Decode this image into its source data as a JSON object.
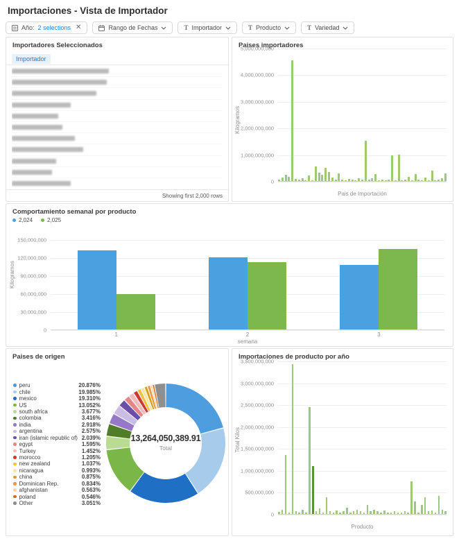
{
  "header": {
    "title": "Importaciones - Vista de Importador"
  },
  "filters": [
    {
      "icon": "listbox-filter-icon",
      "label": "Año:",
      "value": "2 selections",
      "action": "remove"
    },
    {
      "icon": "calendar-icon",
      "label": "Rango de Fechas",
      "action": "expand"
    },
    {
      "icon": "text-filter-icon",
      "label": "Importador",
      "action": "expand"
    },
    {
      "icon": "text-filter-icon",
      "label": "Producto",
      "action": "expand"
    },
    {
      "icon": "text-filter-icon",
      "label": "Variedad",
      "action": "expand"
    }
  ],
  "importers_panel": {
    "title": "Importadores Seleccionados",
    "column_header": "Importador",
    "rows_redacted": true,
    "redacted_row_widths_pct": [
      46,
      45,
      40,
      28,
      22,
      24,
      30,
      34,
      21,
      19,
      28
    ],
    "footer": "Showing first 2,000 rows"
  },
  "chart_data": [
    {
      "id": "paises-importadores",
      "type": "bar",
      "title": "Paises importadores",
      "xlabel": "Pais de Importación",
      "ylabel": "Kilogramos",
      "ylim": [
        0,
        5000000000
      ],
      "yticks": [
        "5,000,000,000",
        "4,000,000,000",
        "3,000,000,000",
        "2,000,000,000",
        "1,000,000,000",
        "0"
      ],
      "bar_color": "#9cc878",
      "grid": true,
      "values": [
        60000000,
        130000000,
        230000000,
        160000000,
        4550000000,
        90000000,
        40000000,
        110000000,
        30000000,
        210000000,
        30000000,
        540000000,
        310000000,
        240000000,
        500000000,
        350000000,
        130000000,
        40000000,
        300000000,
        60000000,
        30000000,
        90000000,
        50000000,
        30000000,
        100000000,
        60000000,
        1520000000,
        40000000,
        100000000,
        250000000,
        30000000,
        60000000,
        30000000,
        40000000,
        970000000,
        30000000,
        1000000000,
        30000000,
        60000000,
        150000000,
        30000000,
        250000000,
        60000000,
        30000000,
        120000000,
        30000000,
        400000000,
        30000000,
        60000000,
        100000000,
        300000000
      ]
    },
    {
      "id": "comportamiento-semanal",
      "type": "bar",
      "title": "Comportamiento semanal por producto",
      "xlabel": "semana",
      "ylabel": "Kilogramos",
      "categories": [
        "1",
        "2",
        "3"
      ],
      "series": [
        {
          "name": "2,024",
          "color": "#4ba0e0",
          "values": [
            133000000,
            121000000,
            108000000
          ]
        },
        {
          "name": "2,025",
          "color": "#7cb84e",
          "values": [
            59000000,
            113000000,
            135000000
          ]
        }
      ],
      "ylim": [
        0,
        150000000
      ],
      "yticks": [
        "150,000,000",
        "120,000,000",
        "90,000,000",
        "60,000,000",
        "30,000,000",
        "0"
      ],
      "grid": true,
      "legend_position": "top-left"
    },
    {
      "id": "paises-origen",
      "type": "pie",
      "title": "Paises de origen",
      "center_value": "13,264,050,389.91",
      "center_label": "Total",
      "slices": [
        {
          "name": "peru",
          "pct_label": "20.876%",
          "pct": 20.876,
          "color": "#4e9dde"
        },
        {
          "name": "chile",
          "pct_label": "19.985%",
          "pct": 19.985,
          "color": "#a7cbea"
        },
        {
          "name": "mexico",
          "pct_label": "19.310%",
          "pct": 19.31,
          "color": "#1f6fc5"
        },
        {
          "name": "US",
          "pct_label": "13.052%",
          "pct": 13.052,
          "color": "#7ab648"
        },
        {
          "name": "south africa",
          "pct_label": "3.677%",
          "pct": 3.677,
          "color": "#b9db92"
        },
        {
          "name": "colombia",
          "pct_label": "3.416%",
          "pct": 3.416,
          "color": "#507d28"
        },
        {
          "name": "india",
          "pct_label": "2.918%",
          "pct": 2.918,
          "color": "#9678c8"
        },
        {
          "name": "argentina",
          "pct_label": "2.575%",
          "pct": 2.575,
          "color": "#cabce4"
        },
        {
          "name": "iran (islamic republic of)",
          "pct_label": "2.039%",
          "pct": 2.039,
          "color": "#6a4ea8"
        },
        {
          "name": "egypt",
          "pct_label": "1.595%",
          "pct": 1.595,
          "color": "#e58787"
        },
        {
          "name": "Turkey",
          "pct_label": "1.452%",
          "pct": 1.452,
          "color": "#f2bcbc"
        },
        {
          "name": "morocco",
          "pct_label": "1.205%",
          "pct": 1.205,
          "color": "#cc3b33"
        },
        {
          "name": "new zealand",
          "pct_label": "1.037%",
          "pct": 1.037,
          "color": "#efc23f"
        },
        {
          "name": "nicaragua",
          "pct_label": "0.993%",
          "pct": 0.993,
          "color": "#f7e5ac"
        },
        {
          "name": "china",
          "pct_label": "0.875%",
          "pct": 0.875,
          "color": "#d9a11c"
        },
        {
          "name": "Dominican Rep.",
          "pct_label": "0.834%",
          "pct": 0.834,
          "color": "#f0963f"
        },
        {
          "name": "afghanistan",
          "pct_label": "0.563%",
          "pct": 0.563,
          "color": "#f8d4ae"
        },
        {
          "name": "poland",
          "pct_label": "0.546%",
          "pct": 0.546,
          "color": "#d06f1a"
        },
        {
          "name": "Other",
          "pct_label": "3.051%",
          "pct": 3.051,
          "color": "#8f8f8f"
        }
      ]
    },
    {
      "id": "producto-por-anio",
      "type": "bar",
      "title": "Importaciones de producto por año",
      "xlabel": "Producto",
      "ylabel": "Total Kilos",
      "ylim": [
        0,
        3500000000
      ],
      "yticks": [
        "3,500,000,000",
        "3,000,000,000",
        "2,500,000,000",
        "2,000,000,000",
        "1,500,000,000",
        "1,000,000,000",
        "500,000,000",
        "0"
      ],
      "bar_color": "#9cc878",
      "dark_color": "#5e8f3b",
      "dark_indices": [
        10
      ],
      "grid": true,
      "values": [
        50000000,
        100000000,
        1350000000,
        30000000,
        3430000000,
        60000000,
        30000000,
        90000000,
        30000000,
        2450000000,
        1100000000,
        60000000,
        120000000,
        30000000,
        390000000,
        60000000,
        30000000,
        80000000,
        30000000,
        60000000,
        150000000,
        30000000,
        60000000,
        100000000,
        60000000,
        30000000,
        200000000,
        60000000,
        100000000,
        60000000,
        30000000,
        80000000,
        30000000,
        30000000,
        60000000,
        30000000,
        40000000,
        60000000,
        30000000,
        750000000,
        280000000,
        30000000,
        200000000,
        380000000,
        60000000,
        80000000,
        30000000,
        420000000,
        100000000,
        60000000
      ]
    }
  ]
}
